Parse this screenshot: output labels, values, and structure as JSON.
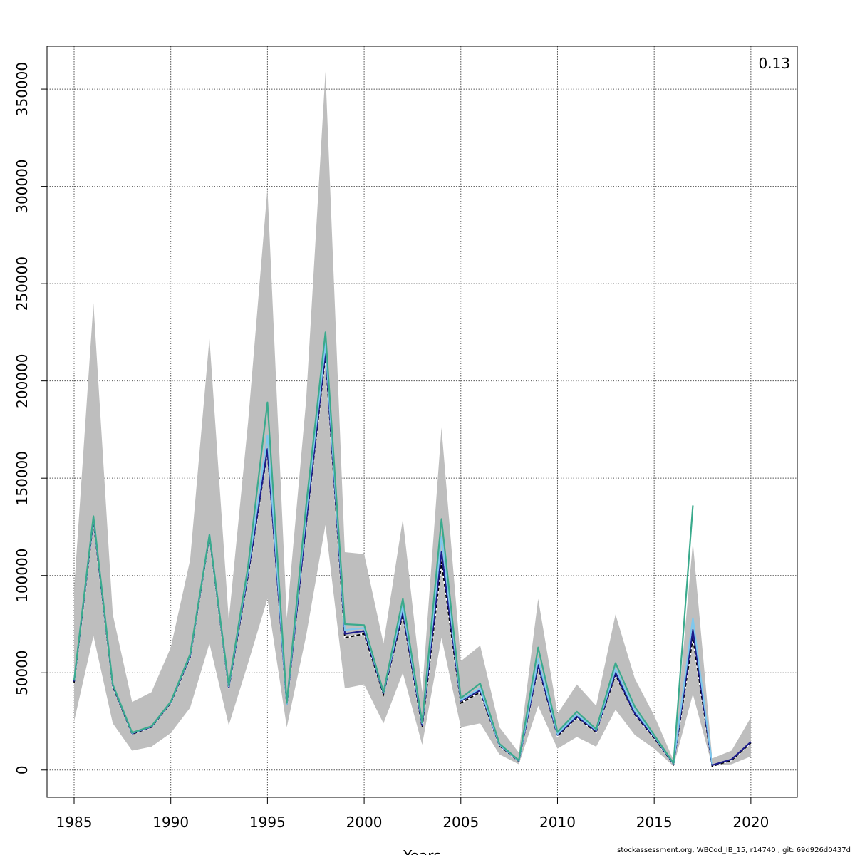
{
  "footer_text": "stockassessment.org, WBCod_IB_15, r14740 , git: 69d926d0437d",
  "chart_data": {
    "type": "line",
    "title": "",
    "xlabel": "Years",
    "ylabel": "",
    "corner_label": "0.13",
    "xlim": [
      1983.6,
      2022.4
    ],
    "ylim": [
      -14000,
      372000
    ],
    "xticks": [
      1985,
      1990,
      1995,
      2000,
      2005,
      2010,
      2015,
      2020
    ],
    "yticks": [
      0,
      50000,
      100000,
      150000,
      200000,
      250000,
      300000,
      350000
    ],
    "grid": true,
    "band": {
      "color": "#bebebe",
      "x": [
        1985,
        1986,
        1987,
        1988,
        1989,
        1990,
        1991,
        1992,
        1993,
        1994,
        1995,
        1996,
        1997,
        1998,
        1999,
        2000,
        2001,
        2002,
        2003,
        2004,
        2005,
        2006,
        2007,
        2008,
        2009,
        2010,
        2011,
        2012,
        2013,
        2014,
        2015,
        2016,
        2017,
        2018,
        2019,
        2020
      ],
      "upper": [
        93000,
        240000,
        80000,
        35000,
        40000,
        63000,
        108000,
        222000,
        77000,
        179000,
        299000,
        78000,
        190000,
        359000,
        112000,
        111000,
        65000,
        129000,
        40000,
        176000,
        56000,
        64000,
        22000,
        9000,
        88000,
        29000,
        44000,
        33000,
        80000,
        47000,
        28000,
        5000,
        117000,
        6000,
        10000,
        27000
      ],
      "lower": [
        25000,
        69000,
        24000,
        10000,
        12000,
        19000,
        32000,
        65000,
        23000,
        55000,
        88000,
        22000,
        69000,
        126000,
        42000,
        44000,
        24000,
        50000,
        13000,
        68000,
        22000,
        24000,
        8000,
        3000,
        33000,
        11000,
        17000,
        12000,
        31000,
        18000,
        11000,
        2000,
        39000,
        2000,
        3000,
        7000
      ]
    },
    "series": [
      {
        "color": "#000000",
        "dashed": true,
        "x": [
          1985,
          1986,
          1987,
          1988,
          1989,
          1990,
          1991,
          1992,
          1993,
          1994,
          1995,
          1996,
          1997,
          1998,
          1999,
          2000,
          2001,
          2002,
          2003,
          2004,
          2005,
          2006,
          2007,
          2008,
          2009,
          2010,
          2011,
          2012,
          2013,
          2014,
          2015,
          2016,
          2017,
          2018,
          2019,
          2020
        ],
        "values": [
          45000,
          128000,
          43000,
          18500,
          22000,
          34500,
          58000,
          120000,
          42000,
          100000,
          164000,
          33500,
          126000,
          213000,
          68000,
          70000,
          39000,
          80000,
          22000,
          107000,
          34500,
          40000,
          12500,
          4500,
          53000,
          17500,
          27000,
          19500,
          49000,
          28500,
          16500,
          3000,
          68000,
          2000,
          5000,
          14000
        ]
      },
      {
        "color": "#1c1c8c",
        "dashed": false,
        "x": [
          1985,
          1986,
          1987,
          1988,
          1989,
          1990,
          1991,
          1992,
          1993,
          1994,
          1995,
          1996,
          1997,
          1998,
          1999,
          2000,
          2001,
          2002,
          2003,
          2004,
          2005,
          2006,
          2007,
          2008,
          2009,
          2010,
          2011,
          2012,
          2013,
          2014,
          2015,
          2016,
          2017,
          2018,
          2019,
          2020
        ],
        "values": [
          45500,
          129000,
          43500,
          18800,
          22200,
          34800,
          58500,
          120500,
          42500,
          101000,
          165000,
          33800,
          127000,
          215000,
          70000,
          71500,
          39500,
          81500,
          23000,
          112000,
          35500,
          41000,
          12800,
          4700,
          54000,
          18000,
          27500,
          20000,
          50000,
          29000,
          17000,
          3200,
          72000,
          2500,
          5500,
          14500
        ]
      },
      {
        "color": "#7ec8ee",
        "dashed": false,
        "x": [
          1985,
          1986,
          1987,
          1988,
          1989,
          1990,
          1991,
          1992,
          1993,
          1994,
          1995,
          1996,
          1997,
          1998,
          1999,
          2000,
          2001,
          2002,
          2003,
          2004,
          2005,
          2006,
          2007,
          2008,
          2009,
          2010,
          2011,
          2012,
          2013,
          2014,
          2015,
          2016,
          2017,
          2018
        ],
        "values": [
          46000,
          130000,
          44000,
          19000,
          22400,
          35000,
          59000,
          121000,
          43000,
          103000,
          172000,
          34000,
          132000,
          219000,
          72000,
          73000,
          40000,
          84000,
          24000,
          120000,
          36000,
          42000,
          13000,
          4800,
          57000,
          18500,
          28500,
          20500,
          52000,
          30500,
          17500,
          3400,
          78000,
          3000
        ]
      },
      {
        "color": "#3aaa8c",
        "dashed": false,
        "x": [
          1985,
          1986,
          1987,
          1988,
          1989,
          1990,
          1991,
          1992,
          1993,
          1994,
          1995,
          1996,
          1997,
          1998,
          1999,
          2000,
          2001,
          2002,
          2003,
          2004,
          2005,
          2006,
          2007,
          2008,
          2009,
          2010,
          2011,
          2012,
          2013,
          2014,
          2015,
          2016,
          2017
        ],
        "values": [
          46000,
          130500,
          44000,
          19200,
          22500,
          35200,
          59500,
          121000,
          43500,
          105000,
          189000,
          34500,
          136000,
          225000,
          75000,
          74500,
          40000,
          88000,
          24500,
          129000,
          37000,
          44500,
          13500,
          5000,
          63000,
          19500,
          30000,
          21000,
          55000,
          32500,
          18000,
          3500,
          136000
        ]
      }
    ]
  }
}
